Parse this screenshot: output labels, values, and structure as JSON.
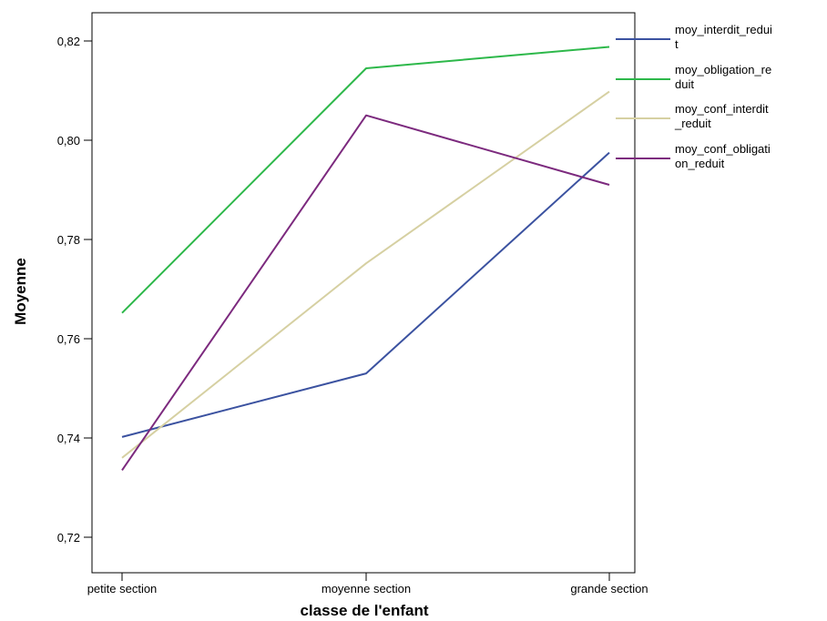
{
  "chart_data": {
    "type": "line",
    "title": "",
    "xlabel": "classe de l'enfant",
    "ylabel": "Moyenne",
    "categories": [
      "petite section",
      "moyenne section",
      "grande section"
    ],
    "ylim": [
      0.714,
      0.826
    ],
    "yticks": [
      0.72,
      0.74,
      0.76,
      0.78,
      0.8,
      0.82
    ],
    "ytick_labels": [
      "0,72",
      "0,74",
      "0,76",
      "0,78",
      "0,80",
      "0,82"
    ],
    "grid": false,
    "legend_position": "right",
    "series": [
      {
        "name": "moy_interdit_reduit",
        "legend_lines": [
          "moy_interdit_redui",
          "t"
        ],
        "color": "#3b52a0",
        "values": [
          0.7402,
          0.753,
          0.7975
        ]
      },
      {
        "name": "moy_obligation_reduit",
        "legend_lines": [
          "moy_obligation_re",
          "duit"
        ],
        "color": "#2db84a",
        "values": [
          0.7652,
          0.8145,
          0.8188
        ]
      },
      {
        "name": "moy_conf_interdit_reduit",
        "legend_lines": [
          "moy_conf_interdit",
          "_reduit"
        ],
        "color": "#d6d0a2",
        "values": [
          0.736,
          0.7752,
          0.8098
        ]
      },
      {
        "name": "moy_conf_obligation_reduit",
        "legend_lines": [
          "moy_conf_obligati",
          "on_reduit"
        ],
        "color": "#7c2a7e",
        "values": [
          0.7335,
          0.805,
          0.791
        ]
      }
    ]
  }
}
